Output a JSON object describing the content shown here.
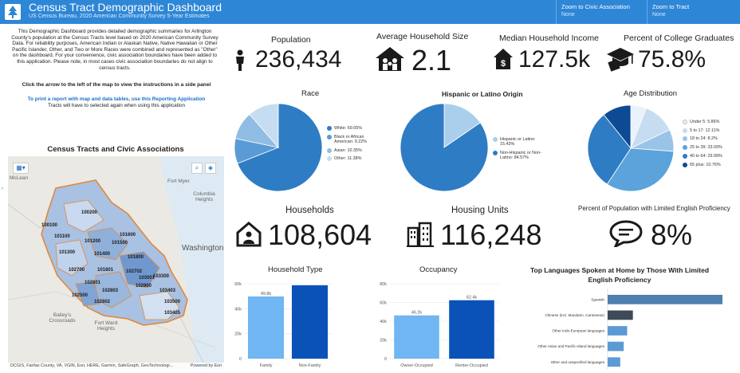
{
  "header": {
    "title": "Census Tract Demographic Dashboard",
    "subtitle": "US Census Bureau, 2020 American Community Survey 5-Year Estimates",
    "selectors": [
      {
        "label": "Zoom to Civic Association",
        "value": "None"
      },
      {
        "label": "Zoom to Tract",
        "value": "None"
      }
    ],
    "colors": {
      "bar": "#2e86d6"
    }
  },
  "intro": {
    "text": "This Demographic Dashboard provides detailed demographic summaries for Arlington County's population at the Census Tracts level based on 2020 American Community Survey Data.  For reliability purposes, American Indian or Alaskan Native, Native Hawaiian or Other Pacific Islander, Other, and Two or More Races were combined and represented as \"Other\" on the dashboard. For your convenience, civic association boundaries have been added to this application. Please note, in most cases civic association boundaries do not align to census tracts.",
    "instruction": "Click the arrow to the left of the map to view the instructions in a side panel",
    "link": "To print a report with map and data tables, use this Reporting Application",
    "note": "Tracts will have to selected again when using this application"
  },
  "map": {
    "title": "Census Tracts and Civic Associations",
    "attribution": "DCGIS, Fairfax County, VA, VGIN, Esri, HERE, Garmin, SafeGraph, GeoTechnologi...",
    "powered": "Powered by Esri",
    "places": [
      "McLean",
      "Fort Myer",
      "Columbia Heights",
      "Washington",
      "Bailey's Crossroads",
      "Fort Ward Heights"
    ],
    "tracts": [
      "100100",
      "100200",
      "101100",
      "101200",
      "101300",
      "101400",
      "101500",
      "101600",
      "101700",
      "101800",
      "101801",
      "102500",
      "102700",
      "102702",
      "102801",
      "102802",
      "102803",
      "102900",
      "103001",
      "103002",
      "103100",
      "103300",
      "103403",
      "103405",
      "103500",
      "102600"
    ]
  },
  "kpis": {
    "population": {
      "label": "Population",
      "value": "236,434"
    },
    "household_size": {
      "label": "Average Household Size",
      "value": "2.1"
    },
    "income": {
      "label": "Median Household Income",
      "value": "127.5k"
    },
    "college": {
      "label": "Percent of College Graduates",
      "value": "75.8%"
    },
    "households": {
      "label": "Households",
      "value": "108,604"
    },
    "housing_units": {
      "label": "Housing Units",
      "value": "116,248"
    },
    "lep": {
      "label": "Percent of Population with Limited English Proficiency",
      "value": "8%"
    }
  },
  "icons": {
    "population": "person-icon",
    "household_size": "family-house-icon",
    "income": "house-dollar-icon",
    "college": "graduation-cap-icon",
    "households": "home-person-icon",
    "housing_units": "buildings-icon",
    "lep": "speech-bubble-icon"
  },
  "chart_data": [
    {
      "type": "pie",
      "title": "Race",
      "slices": [
        {
          "label": "White:",
          "pct": "69.05%",
          "value": 69.05,
          "color": "#2e7cc4"
        },
        {
          "label": "Black or African American:",
          "pct": "9.22%",
          "value": 9.22,
          "color": "#5a9bd5"
        },
        {
          "label": "Asian:",
          "pct": "10.35%",
          "value": 10.35,
          "color": "#8fbde4"
        },
        {
          "label": "Other:",
          "pct": "11.38%",
          "value": 11.38,
          "color": "#c6ddf1"
        }
      ]
    },
    {
      "type": "pie",
      "title": "Hispanic or Latino Origin",
      "slices": [
        {
          "label": "Hispanic or Latino:",
          "pct": "15.43%",
          "value": 15.43,
          "color": "#a9cfec"
        },
        {
          "label": "Non-Hispanic or Non-Latino:",
          "pct": "84.57%",
          "value": 84.57,
          "color": "#2e7cc4"
        }
      ]
    },
    {
      "type": "pie",
      "title": "Age Distribution",
      "slices": [
        {
          "label": "Under 5:",
          "pct": "5.86%",
          "value": 5.86,
          "color": "#eaf2fb"
        },
        {
          "label": "5 to 17:",
          "pct": "12.11%",
          "value": 12.11,
          "color": "#c6ddf1"
        },
        {
          "label": "18 to 24:",
          "pct": "8.2%",
          "value": 8.2,
          "color": "#99c4e8"
        },
        {
          "label": "25 to 39:",
          "pct": "33.09%",
          "value": 33.09,
          "color": "#5ba3da"
        },
        {
          "label": "40 to 64:",
          "pct": "29.99%",
          "value": 29.99,
          "color": "#2e7cc4"
        },
        {
          "label": "65 plus:",
          "pct": "10.76%",
          "value": 10.76,
          "color": "#0d4a94"
        }
      ]
    },
    {
      "type": "bar",
      "title": "Household Type",
      "categories": [
        "Family",
        "Non-Family"
      ],
      "values": [
        49.8,
        58.8
      ],
      "labels": [
        "49.8k",
        ""
      ],
      "colors": [
        "#6fb6f2",
        "#0a52b8"
      ],
      "ylim": [
        0,
        60
      ],
      "ticks": [
        "0",
        "20k",
        "40k",
        "60k"
      ]
    },
    {
      "type": "bar",
      "title": "Occupancy",
      "categories": [
        "Owner-Occupied",
        "Renter-Occupied"
      ],
      "values": [
        46.2,
        62.4
      ],
      "labels": [
        "46.2k",
        "62.4k"
      ],
      "colors": [
        "#6fb6f2",
        "#0a52b8"
      ],
      "ylim": [
        0,
        80
      ],
      "ticks": [
        "0",
        "20k",
        "40k",
        "60k",
        "80k"
      ]
    },
    {
      "type": "bar",
      "orientation": "horizontal",
      "title": "Top Languages Spoken at Home by Those With Limited English Proficiency",
      "categories": [
        "Spanish",
        "Chinese (incl. Mandarin, Cantonese)",
        "Other Indo-European languages",
        "Other Asian and Pacific Island languages",
        "Other and unspecified languages"
      ],
      "values": [
        100,
        22,
        17,
        14,
        11
      ],
      "colors": [
        "#4d7fb0",
        "#3e4a57",
        "#5b9bd5",
        "#5b9bd5",
        "#5b9bd5"
      ]
    }
  ]
}
